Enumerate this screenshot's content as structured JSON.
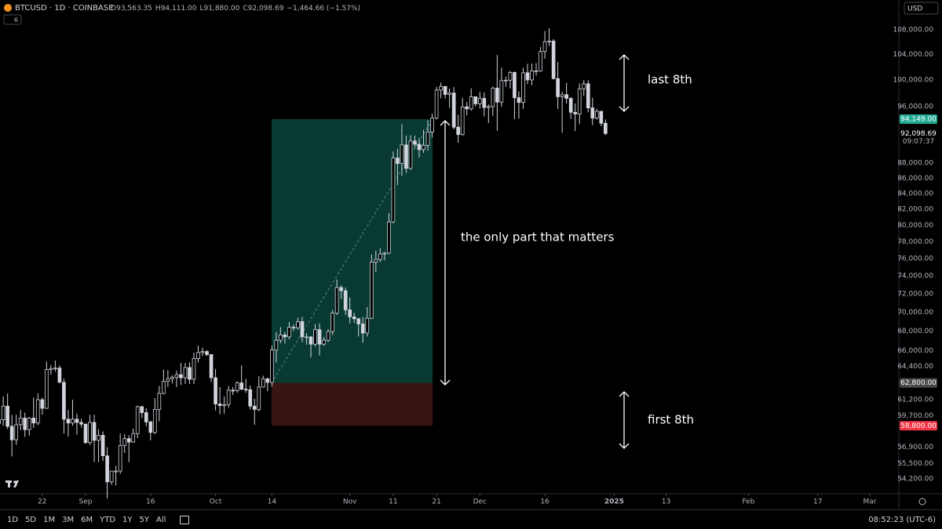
{
  "chart_data": {
    "type": "candlestick",
    "header": {
      "symbol": "BTCUSD · 1D · COINBASE",
      "o": "O",
      "open": "93,563.35",
      "h": "H",
      "high": "94,111.00",
      "l": "L",
      "low": "91,880.00",
      "c": "C",
      "close": "92,098.69",
      "change": "−1,464.66 (−1.57%)",
      "indicators": "6",
      "currency": "USD"
    },
    "open": [
      59000,
      59350,
      60600,
      58750,
      57550,
      58900,
      59500,
      58450,
      59500,
      59050,
      61200,
      60400,
      64100,
      64200,
      64250,
      62850,
      59400,
      59050,
      59400,
      59100,
      58950,
      57300,
      59100,
      57500,
      57950,
      56150,
      53950,
      54850,
      54850,
      57050,
      57650,
      57350,
      58100,
      60550,
      60000,
      59150,
      58200,
      60300,
      61800,
      62950,
      63200,
      63350,
      63600,
      63300,
      64300,
      63150,
      65200,
      65800,
      65900,
      65600,
      63300,
      60800,
      60650,
      60750,
      62100,
      62050,
      62800,
      62200,
      62150,
      60600,
      60300,
      62400,
      63200,
      62850,
      66050,
      67050,
      67600,
      67400,
      68400,
      68350,
      69000,
      67400,
      67400,
      66650,
      68150,
      66650,
      67050,
      67950,
      69900,
      72700,
      72350,
      70250,
      69500,
      69300,
      68750,
      67800,
      69350,
      75600,
      75900,
      76550,
      76650,
      80400,
      88700,
      87950,
      90500,
      87300,
      91050,
      90600,
      89850,
      90450,
      92300,
      94300,
      98450,
      99000,
      97800,
      98000,
      93000,
      91950,
      95950,
      95650,
      97450,
      96400,
      97200,
      95850,
      96000,
      98750,
      96650,
      99900,
      99950,
      101150,
      97300,
      96600,
      101100,
      100000,
      101400,
      101400,
      104450,
      106050,
      106150,
      100200,
      97450,
      97750,
      97200,
      95150,
      94900,
      98650,
      99400,
      95800,
      94300,
      95300,
      93563.35
    ],
    "high": [
      61700,
      61500,
      61800,
      59800,
      59800,
      60250,
      60000,
      59600,
      61400,
      61800,
      61400,
      64900,
      64550,
      65000,
      64500,
      63200,
      60250,
      61200,
      59900,
      59450,
      59000,
      59800,
      59800,
      58500,
      58300,
      56900,
      54850,
      55300,
      58100,
      58050,
      57950,
      58550,
      60650,
      60650,
      60400,
      59250,
      61350,
      62500,
      64100,
      64050,
      63550,
      64000,
      64750,
      64750,
      64800,
      65800,
      66500,
      66300,
      66050,
      65600,
      64150,
      62400,
      61500,
      62500,
      62400,
      62950,
      64500,
      63200,
      62550,
      61300,
      63450,
      63500,
      63300,
      66500,
      67900,
      68400,
      67900,
      68950,
      68700,
      69400,
      69500,
      67800,
      67450,
      68750,
      68800,
      67400,
      68200,
      70250,
      73600,
      72950,
      72700,
      71600,
      69950,
      69400,
      69500,
      70550,
      76500,
      76950,
      77250,
      76800,
      81500,
      89600,
      89950,
      93450,
      91800,
      91850,
      91800,
      91450,
      92650,
      94000,
      94950,
      98950,
      99600,
      99050,
      98700,
      98900,
      94800,
      97300,
      96650,
      98700,
      97500,
      98200,
      98100,
      96300,
      99000,
      103900,
      101900,
      100500,
      101400,
      101300,
      98250,
      101900,
      102500,
      102550,
      102600,
      105200,
      107800,
      108250,
      106450,
      102800,
      98200,
      99550,
      97400,
      96450,
      99450,
      99950,
      99950,
      97300,
      95650,
      95350,
      94111
    ],
    "low": [
      58450,
      58800,
      58500,
      56100,
      57100,
      58400,
      57800,
      57900,
      58600,
      58850,
      59800,
      60350,
      63600,
      63900,
      62800,
      58100,
      57850,
      58800,
      58000,
      58650,
      57200,
      57100,
      55600,
      55600,
      55700,
      52600,
      53700,
      53650,
      54600,
      56400,
      55600,
      57300,
      57700,
      59500,
      58750,
      57500,
      58050,
      59200,
      61700,
      62400,
      62750,
      62400,
      62600,
      62700,
      62700,
      62700,
      64800,
      65450,
      65450,
      62900,
      60200,
      59850,
      59900,
      60450,
      61650,
      61850,
      62100,
      61850,
      60300,
      58900,
      60100,
      62350,
      62000,
      62450,
      64800,
      66750,
      66700,
      67150,
      68000,
      68150,
      66850,
      66600,
      65300,
      66400,
      65500,
      66450,
      66850,
      67600,
      69700,
      71450,
      69700,
      68800,
      68850,
      67450,
      66800,
      67450,
      69300,
      74450,
      75600,
      75800,
      76500,
      80250,
      85100,
      86300,
      86700,
      87100,
      90100,
      88750,
      89400,
      89700,
      91550,
      94100,
      97200,
      97200,
      95800,
      92700,
      90800,
      91800,
      94700,
      95400,
      96000,
      95700,
      94550,
      93600,
      94650,
      92500,
      95950,
      98950,
      98700,
      94150,
      94250,
      95650,
      99350,
      99200,
      100650,
      101250,
      103300,
      105350,
      100050,
      95650,
      92200,
      96450,
      94200,
      92450,
      93450,
      97550,
      95150,
      93300,
      94100,
      93150,
      91880
    ],
    "close": [
      59350,
      60600,
      58750,
      57550,
      58900,
      59500,
      58450,
      59500,
      59050,
      61200,
      60400,
      64100,
      64200,
      64250,
      62850,
      59400,
      59050,
      59400,
      59100,
      58950,
      57300,
      59100,
      57500,
      57950,
      56150,
      53950,
      54850,
      54850,
      57050,
      57650,
      57350,
      58100,
      60550,
      60000,
      59150,
      58200,
      60300,
      61800,
      62950,
      63200,
      63350,
      63600,
      63300,
      64300,
      63150,
      65200,
      65800,
      65900,
      65600,
      63300,
      60800,
      60650,
      60750,
      62100,
      62050,
      62800,
      62200,
      62150,
      60600,
      60300,
      62400,
      63200,
      62850,
      66050,
      67050,
      67600,
      67400,
      68400,
      68350,
      69000,
      67400,
      67400,
      66650,
      68150,
      66650,
      67050,
      67950,
      69900,
      72700,
      72350,
      70250,
      69500,
      69300,
      68750,
      67800,
      69350,
      75600,
      75900,
      76550,
      76650,
      80400,
      88700,
      87950,
      90500,
      87300,
      91050,
      90600,
      89850,
      90450,
      92300,
      94300,
      98450,
      99000,
      97800,
      98000,
      93000,
      91950,
      95950,
      95650,
      97450,
      96400,
      97200,
      95850,
      96000,
      98750,
      96650,
      99900,
      99950,
      101150,
      97300,
      96600,
      101100,
      100000,
      101400,
      101400,
      104450,
      106050,
      106150,
      100200,
      97450,
      97750,
      97200,
      95150,
      94900,
      98650,
      99400,
      95800,
      94300,
      95300,
      93563.35,
      92098.69
    ],
    "up_color": "#d1d4dc",
    "down_color": "#d1d4dc",
    "log": true,
    "ylim": [
      52975,
      113050
    ],
    "xlim": [
      0.25,
      207.7
    ],
    "yticks": [
      {
        "value": 108000,
        "label": "108,000.00"
      },
      {
        "value": 104000,
        "label": "104,000.00"
      },
      {
        "value": 100000,
        "label": "100,000.00"
      },
      {
        "value": 96000,
        "label": "96,000.00"
      },
      {
        "value": 88000,
        "label": "88,000.00"
      },
      {
        "value": 86000,
        "label": "86,000.00"
      },
      {
        "value": 84000,
        "label": "84,000.00"
      },
      {
        "value": 82000,
        "label": "82,000.00"
      },
      {
        "value": 80000,
        "label": "80,000.00"
      },
      {
        "value": 78000,
        "label": "78,000.00"
      },
      {
        "value": 76000,
        "label": "76,000.00"
      },
      {
        "value": 74000,
        "label": "74,000.00"
      },
      {
        "value": 72000,
        "label": "72,000.00"
      },
      {
        "value": 70000,
        "label": "70,000.00"
      },
      {
        "value": 68000,
        "label": "68,000.00"
      },
      {
        "value": 66000,
        "label": "66,000.00"
      },
      {
        "value": 64400,
        "label": "64,400.00"
      },
      {
        "value": 61200,
        "label": "61,200.00"
      },
      {
        "value": 59700,
        "label": "59,700.00"
      },
      {
        "value": 56900,
        "label": "56,900.00"
      },
      {
        "value": 55500,
        "label": "55,500.00"
      },
      {
        "value": 54200,
        "label": "54,200.00"
      }
    ],
    "xticks": [
      {
        "value": 10,
        "label": "22"
      },
      {
        "value": 20,
        "label": "Sep"
      },
      {
        "value": 35,
        "label": "16"
      },
      {
        "value": 50,
        "label": "Oct"
      },
      {
        "value": 63,
        "label": "14"
      },
      {
        "value": 81,
        "label": "Nov"
      },
      {
        "value": 91,
        "label": "11"
      },
      {
        "value": 101,
        "label": "21"
      },
      {
        "value": 111,
        "label": "Dec"
      },
      {
        "value": 126,
        "label": "16"
      },
      {
        "value": 142,
        "label": "2025"
      },
      {
        "value": 154,
        "label": "13"
      },
      {
        "value": 173,
        "label": "Feb"
      },
      {
        "value": 189,
        "label": "17"
      },
      {
        "value": 201,
        "label": "Mar"
      }
    ],
    "price_labels": [
      {
        "value": 94149,
        "label": "94,149.00",
        "color": "#22ab94"
      },
      {
        "value": 62800,
        "label": "62,800.00",
        "color": "#4a4a4a"
      },
      {
        "value": 58800,
        "label": "58,800.00",
        "color": "#f23645"
      }
    ],
    "last_price": {
      "value": 92098.69,
      "label": "92,098.69",
      "countdown": "09:07:37"
    },
    "annotations": [
      "the only part that matters",
      "last 8th",
      "first 8th"
    ],
    "toolbar": {
      "ranges": [
        "1D",
        "5D",
        "1M",
        "3M",
        "6M",
        "YTD",
        "1Y",
        "5Y",
        "All"
      ],
      "clock": "08:52:23 (UTC-6)"
    }
  }
}
